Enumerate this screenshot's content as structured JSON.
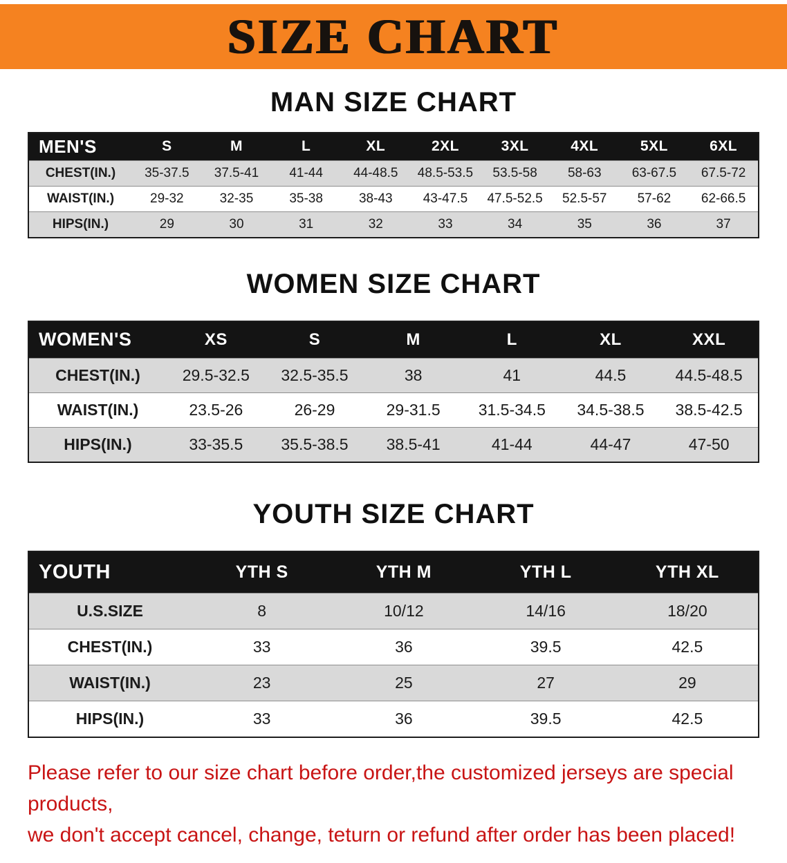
{
  "banner": {
    "title": "SIZE CHART"
  },
  "colors": {
    "banner-bg": "#f58220",
    "header-bg": "#141414",
    "row-shade": "#d9d9d9",
    "notice-color": "#c81414"
  },
  "sections": [
    {
      "id": "men",
      "heading": "MAN SIZE CHART",
      "table": {
        "header": [
          "MEN'S",
          "S",
          "M",
          "L",
          "XL",
          "2XL",
          "3XL",
          "4XL",
          "5XL",
          "6XL"
        ],
        "rows": [
          [
            "CHEST(IN.)",
            "35-37.5",
            "37.5-41",
            "41-44",
            "44-48.5",
            "48.5-53.5",
            "53.5-58",
            "58-63",
            "63-67.5",
            "67.5-72"
          ],
          [
            "WAIST(IN.)",
            "29-32",
            "32-35",
            "35-38",
            "38-43",
            "43-47.5",
            "47.5-52.5",
            "52.5-57",
            "57-62",
            "62-66.5"
          ],
          [
            "HIPS(IN.)",
            "29",
            "30",
            "31",
            "32",
            "33",
            "34",
            "35",
            "36",
            "37"
          ]
        ]
      }
    },
    {
      "id": "women",
      "heading": "WOMEN SIZE CHART",
      "table": {
        "header": [
          "WOMEN'S",
          "XS",
          "S",
          "M",
          "L",
          "XL",
          "XXL"
        ],
        "rows": [
          [
            "CHEST(IN.)",
            "29.5-32.5",
            "32.5-35.5",
            "38",
            "41",
            "44.5",
            "44.5-48.5"
          ],
          [
            "WAIST(IN.)",
            "23.5-26",
            "26-29",
            "29-31.5",
            "31.5-34.5",
            "34.5-38.5",
            "38.5-42.5"
          ],
          [
            "HIPS(IN.)",
            "33-35.5",
            "35.5-38.5",
            "38.5-41",
            "41-44",
            "44-47",
            "47-50"
          ]
        ]
      }
    },
    {
      "id": "youth",
      "heading": "YOUTH SIZE CHART",
      "table": {
        "header": [
          "YOUTH",
          "YTH S",
          "YTH M",
          "YTH L",
          "YTH XL"
        ],
        "rows": [
          [
            "U.S.SIZE",
            "8",
            "10/12",
            "14/16",
            "18/20"
          ],
          [
            "CHEST(IN.)",
            "33",
            "36",
            "39.5",
            "42.5"
          ],
          [
            "WAIST(IN.)",
            "23",
            "25",
            "27",
            "29"
          ],
          [
            "HIPS(IN.)",
            "33",
            "36",
            "39.5",
            "42.5"
          ]
        ]
      }
    }
  ],
  "footer": {
    "line1": "Please refer to our size chart before order,the customized jerseys are special products,",
    "line2": "we don't accept cancel, change, teturn or refund after order has been placed!"
  }
}
